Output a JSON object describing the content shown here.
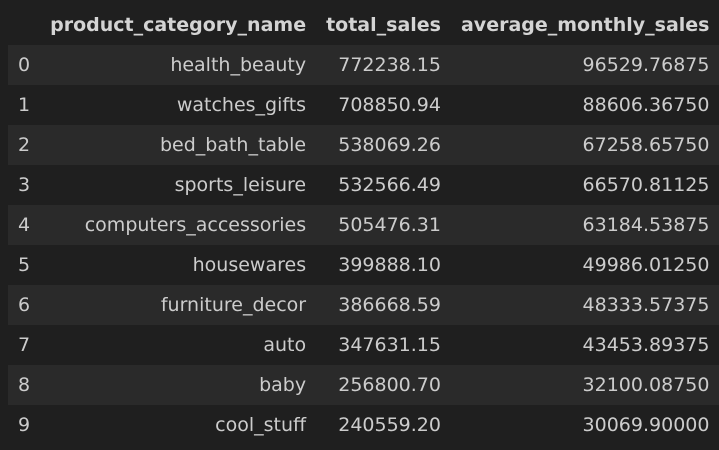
{
  "table": {
    "index_header": "",
    "columns": [
      "product_category_name",
      "total_sales",
      "average_monthly_sales"
    ],
    "rows": [
      {
        "index": "0",
        "product_category_name": "health_beauty",
        "total_sales": "772238.15",
        "average_monthly_sales": "96529.76875"
      },
      {
        "index": "1",
        "product_category_name": "watches_gifts",
        "total_sales": "708850.94",
        "average_monthly_sales": "88606.36750"
      },
      {
        "index": "2",
        "product_category_name": "bed_bath_table",
        "total_sales": "538069.26",
        "average_monthly_sales": "67258.65750"
      },
      {
        "index": "3",
        "product_category_name": "sports_leisure",
        "total_sales": "532566.49",
        "average_monthly_sales": "66570.81125"
      },
      {
        "index": "4",
        "product_category_name": "computers_accessories",
        "total_sales": "505476.31",
        "average_monthly_sales": "63184.53875"
      },
      {
        "index": "5",
        "product_category_name": "housewares",
        "total_sales": "399888.10",
        "average_monthly_sales": "49986.01250"
      },
      {
        "index": "6",
        "product_category_name": "furniture_decor",
        "total_sales": "386668.59",
        "average_monthly_sales": "48333.57375"
      },
      {
        "index": "7",
        "product_category_name": "auto",
        "total_sales": "347631.15",
        "average_monthly_sales": "43453.89375"
      },
      {
        "index": "8",
        "product_category_name": "baby",
        "total_sales": "256800.70",
        "average_monthly_sales": "32100.08750"
      },
      {
        "index": "9",
        "product_category_name": "cool_stuff",
        "total_sales": "240559.20",
        "average_monthly_sales": "30069.90000"
      }
    ]
  },
  "colors": {
    "background": "#1f1f1f",
    "row_stripe": "#2a2a2a",
    "header_text": "#d4d4d4",
    "cell_text": "#cccccc"
  }
}
